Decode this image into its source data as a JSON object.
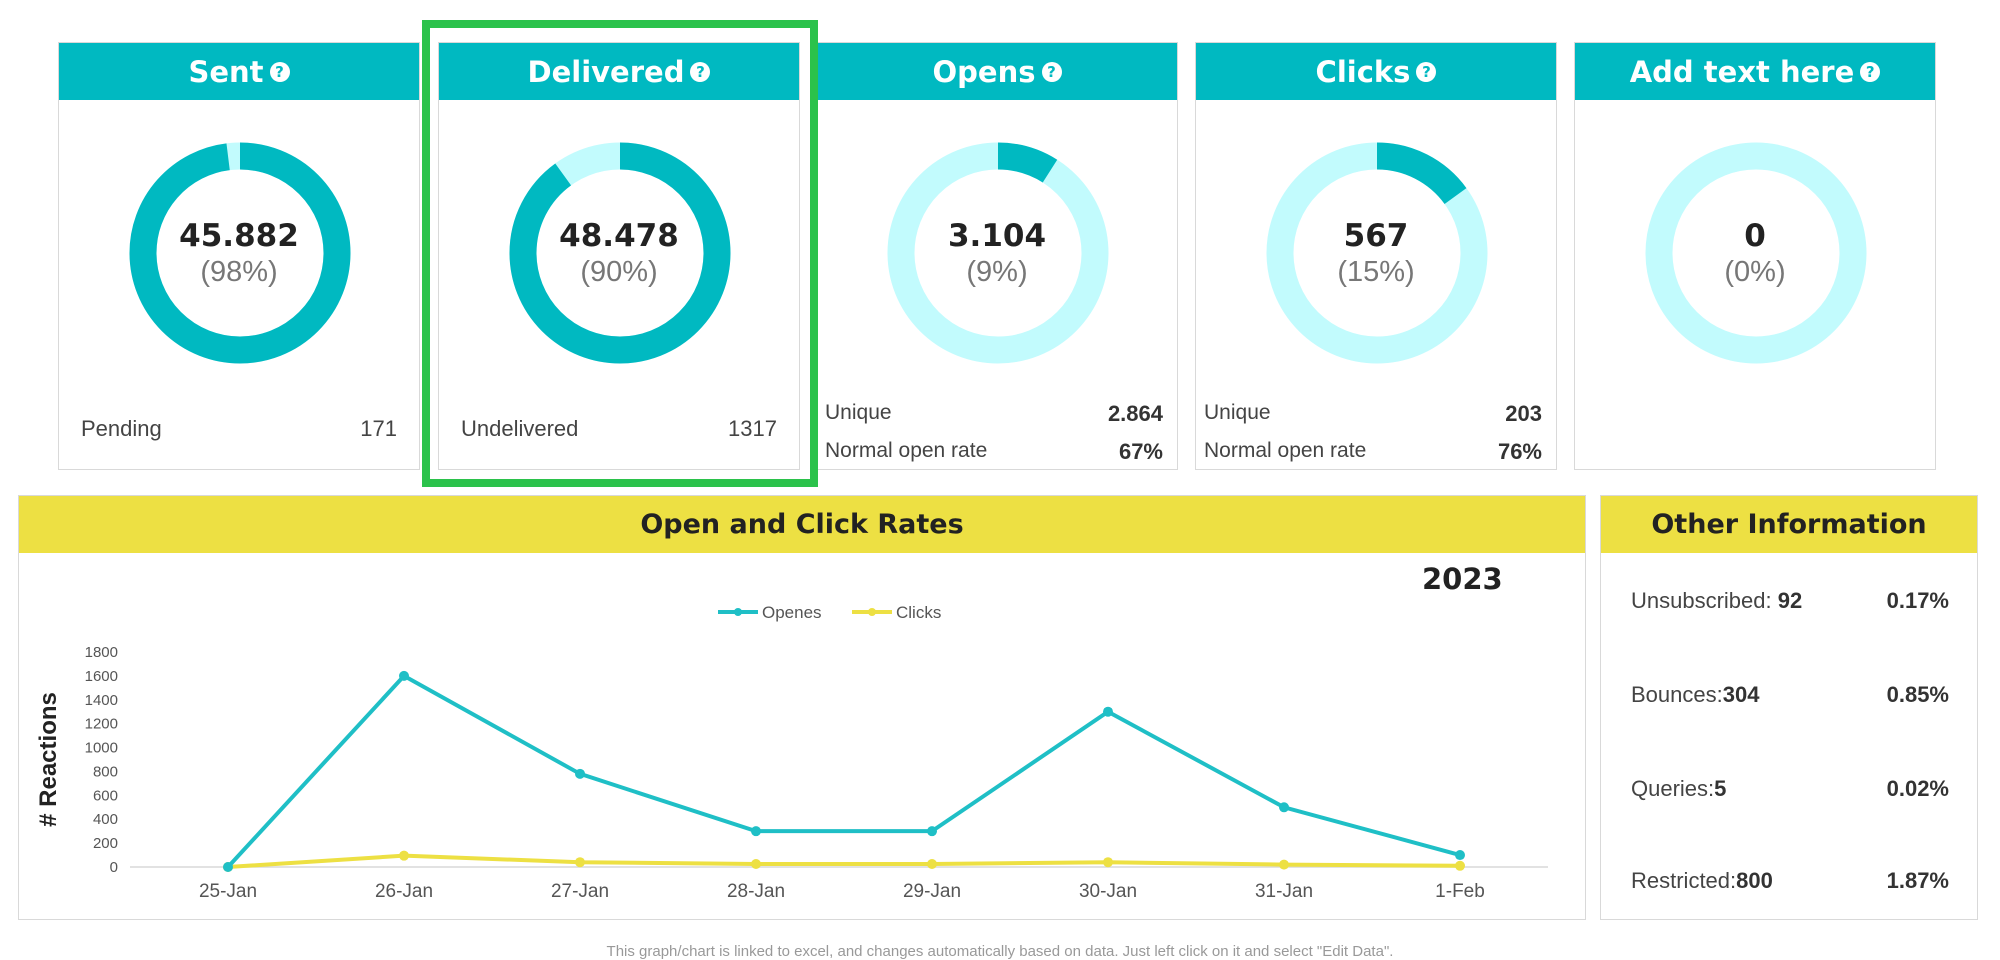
{
  "colors": {
    "teal": "#00b9c1",
    "light_teal": "#c2fbfd",
    "yellow": "#ede043",
    "highlight": "#2bc24b"
  },
  "cards": [
    {
      "title": "Sent",
      "value": "45.882",
      "percent": "(98%)",
      "fraction": 0.98,
      "rows": [
        {
          "label": "Pending",
          "value": "171"
        }
      ]
    },
    {
      "title": "Delivered",
      "value": "48.478",
      "percent": "(90%)",
      "fraction": 0.9,
      "rows": [
        {
          "label": "Undelivered",
          "value": "1317"
        }
      ]
    },
    {
      "title": "Opens",
      "value": "3.104",
      "percent": "(9%)",
      "fraction": 0.09,
      "rows": [
        {
          "label": "Unique",
          "value": "2.864"
        },
        {
          "label": "Normal open rate",
          "value": "67%"
        }
      ]
    },
    {
      "title": "Clicks",
      "value": "567",
      "percent": "(15%)",
      "fraction": 0.15,
      "rows": [
        {
          "label": "Unique",
          "value": "203"
        },
        {
          "label": "Normal open rate",
          "value": "76%"
        }
      ]
    },
    {
      "title": "Add text here",
      "value": "0",
      "percent": "(0%)",
      "fraction": 0.0,
      "rows": []
    }
  ],
  "help_icon": "question-circle-icon",
  "rates_panel": {
    "title": "Open and Click Rates",
    "year": "2023"
  },
  "chart_data": {
    "type": "line",
    "categories": [
      "25-Jan",
      "26-Jan",
      "27-Jan",
      "28-Jan",
      "29-Jan",
      "30-Jan",
      "31-Jan",
      "1-Feb"
    ],
    "series": [
      {
        "name": "Openes",
        "values": [
          0,
          1600,
          780,
          300,
          300,
          1300,
          500,
          100
        ],
        "color": "#1fbfc6"
      },
      {
        "name": "Clicks",
        "values": [
          0,
          95,
          40,
          25,
          25,
          40,
          20,
          10
        ],
        "color": "#ede043"
      }
    ],
    "ylabel": "# Reactions",
    "ylim": [
      0,
      1800
    ],
    "yticks": [
      "0",
      "200",
      "400",
      "600",
      "800",
      "1000",
      "1200",
      "1400",
      "1600",
      "1800"
    ],
    "legend": "top-center"
  },
  "other": {
    "title": "Other Information",
    "rows": [
      {
        "label": "Unsubscribed: ",
        "count": "92",
        "pct": "0.17%"
      },
      {
        "label": "Bounces:",
        "count": "304",
        "pct": "0.85%"
      },
      {
        "label": "Queries:",
        "count": "5",
        "pct": "0.02%"
      },
      {
        "label": "Restricted:",
        "count": "800",
        "pct": "1.87%"
      }
    ]
  },
  "footnote": "This graph/chart is linked to excel,  and changes automatically based on data. Just left click on it and select \"Edit Data\"."
}
